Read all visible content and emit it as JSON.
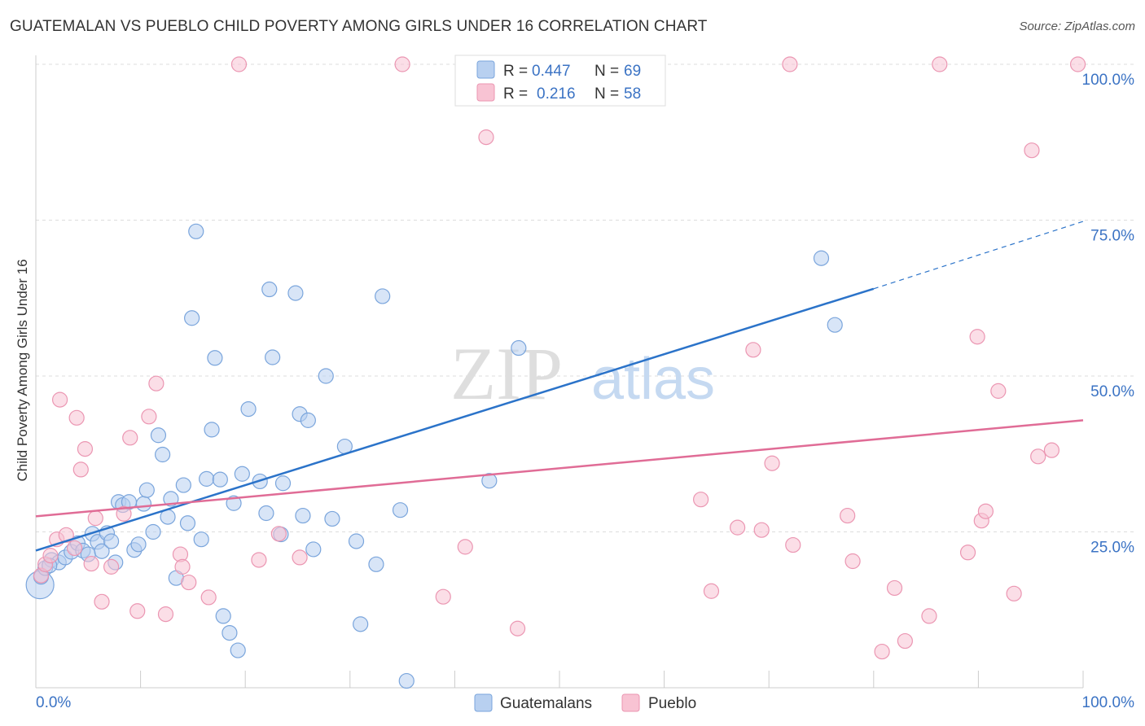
{
  "header": {
    "title": "GUATEMALAN VS PUEBLO CHILD POVERTY AMONG GIRLS UNDER 16 CORRELATION CHART",
    "source": "Source: ZipAtlas.com"
  },
  "watermark": {
    "zip": "ZIP",
    "atlas": "atlas"
  },
  "legend": {
    "rows": [
      {
        "r_label": "R =",
        "r_value": "0.447",
        "n_label": "N =",
        "n_value": "69"
      },
      {
        "r_label": "R =",
        "r_value": "0.216",
        "n_label": "N =",
        "n_value": "58"
      }
    ]
  },
  "bottom_legend": [
    "Guatemalans",
    "Pueblo"
  ],
  "colors": {
    "blue_fill": "#b8d0f0",
    "blue_stroke": "#7aa5dc",
    "blue_line": "#2b73c9",
    "pink_fill": "#f8c3d3",
    "pink_stroke": "#eb96b2",
    "pink_line": "#e06c96",
    "axis_text": "#3b73c4",
    "grid": "#dddddd"
  },
  "chart_data": {
    "type": "scatter",
    "xlabel": "",
    "ylabel": "Child Poverty Among Girls Under 16",
    "xlim": [
      0,
      100
    ],
    "ylim": [
      0,
      100
    ],
    "x_tick_labels": [
      "0.0%",
      "100.0%"
    ],
    "y_tick_labels": [
      "25.0%",
      "50.0%",
      "75.0%",
      "100.0%"
    ],
    "y_ticks": [
      25,
      50,
      75,
      100
    ],
    "grid": true,
    "series": [
      {
        "name": "Guatemalans",
        "r": 0.447,
        "n": 69,
        "trend": {
          "x0": 0,
          "y0": 22.0,
          "x1": 80,
          "y1": 64.0,
          "dash_to_x": 100,
          "dash_to_y": 74.8
        },
        "points": [
          [
            0.4,
            16.5
          ],
          [
            0.5,
            17.8
          ],
          [
            0.9,
            19.2
          ],
          [
            1.5,
            20.5
          ],
          [
            2.2,
            20.1
          ],
          [
            2.8,
            20.9
          ],
          [
            3.4,
            21.8
          ],
          [
            4.0,
            23.2
          ],
          [
            4.5,
            22.0
          ],
          [
            5.0,
            21.4
          ],
          [
            5.4,
            24.7
          ],
          [
            5.9,
            23.4
          ],
          [
            6.3,
            21.9
          ],
          [
            6.8,
            24.8
          ],
          [
            7.2,
            23.5
          ],
          [
            7.6,
            20.1
          ],
          [
            7.9,
            29.8
          ],
          [
            8.3,
            29.3
          ],
          [
            8.9,
            29.8
          ],
          [
            9.4,
            22.1
          ],
          [
            9.8,
            23.0
          ],
          [
            10.3,
            29.5
          ],
          [
            10.6,
            31.7
          ],
          [
            11.2,
            25.0
          ],
          [
            11.7,
            40.5
          ],
          [
            12.1,
            37.4
          ],
          [
            12.6,
            27.4
          ],
          [
            12.9,
            30.3
          ],
          [
            13.4,
            17.6
          ],
          [
            14.1,
            32.5
          ],
          [
            14.5,
            26.4
          ],
          [
            14.9,
            59.3
          ],
          [
            15.3,
            73.2
          ],
          [
            15.8,
            23.8
          ],
          [
            16.3,
            33.5
          ],
          [
            16.8,
            41.4
          ],
          [
            17.1,
            52.9
          ],
          [
            17.6,
            33.4
          ],
          [
            17.9,
            11.5
          ],
          [
            18.5,
            8.8
          ],
          [
            18.9,
            29.6
          ],
          [
            19.3,
            6.0
          ],
          [
            19.7,
            34.3
          ],
          [
            20.3,
            44.7
          ],
          [
            21.4,
            33.1
          ],
          [
            22.0,
            28.0
          ],
          [
            22.3,
            63.9
          ],
          [
            22.6,
            53.0
          ],
          [
            23.4,
            24.6
          ],
          [
            23.6,
            32.8
          ],
          [
            24.8,
            63.3
          ],
          [
            25.2,
            43.9
          ],
          [
            25.5,
            27.6
          ],
          [
            26.0,
            42.9
          ],
          [
            26.5,
            22.2
          ],
          [
            27.7,
            50.0
          ],
          [
            28.3,
            27.1
          ],
          [
            29.5,
            38.7
          ],
          [
            30.6,
            23.5
          ],
          [
            31.0,
            10.2
          ],
          [
            32.5,
            19.8
          ],
          [
            33.1,
            62.8
          ],
          [
            34.8,
            28.5
          ],
          [
            35.4,
            1.1
          ],
          [
            43.3,
            33.2
          ],
          [
            46.1,
            54.5
          ],
          [
            75.0,
            68.9
          ],
          [
            76.3,
            58.2
          ],
          [
            1.3,
            19.6
          ]
        ]
      },
      {
        "name": "Pueblo",
        "r": 0.216,
        "n": 58,
        "trend": {
          "x0": 0,
          "y0": 27.5,
          "x1": 100,
          "y1": 42.9
        },
        "points": [
          [
            0.5,
            18.0
          ],
          [
            0.9,
            19.8
          ],
          [
            1.4,
            21.2
          ],
          [
            2.0,
            23.8
          ],
          [
            2.3,
            46.2
          ],
          [
            2.9,
            24.5
          ],
          [
            3.7,
            22.4
          ],
          [
            3.9,
            43.3
          ],
          [
            4.3,
            35.0
          ],
          [
            4.7,
            38.3
          ],
          [
            5.3,
            19.9
          ],
          [
            5.7,
            27.2
          ],
          [
            6.3,
            13.8
          ],
          [
            7.2,
            19.4
          ],
          [
            8.4,
            27.9
          ],
          [
            9.0,
            40.1
          ],
          [
            9.7,
            12.3
          ],
          [
            10.8,
            43.5
          ],
          [
            11.5,
            48.8
          ],
          [
            12.4,
            11.8
          ],
          [
            13.8,
            21.4
          ],
          [
            14.0,
            19.4
          ],
          [
            14.6,
            16.9
          ],
          [
            16.5,
            14.5
          ],
          [
            19.4,
            100.0
          ],
          [
            21.3,
            20.5
          ],
          [
            23.2,
            24.7
          ],
          [
            25.2,
            20.9
          ],
          [
            35.0,
            100.0
          ],
          [
            38.9,
            14.6
          ],
          [
            41.0,
            22.6
          ],
          [
            43.0,
            88.3
          ],
          [
            46.0,
            9.5
          ],
          [
            63.5,
            30.2
          ],
          [
            64.5,
            15.5
          ],
          [
            67.0,
            25.7
          ],
          [
            68.5,
            54.2
          ],
          [
            69.3,
            25.3
          ],
          [
            70.3,
            36.0
          ],
          [
            72.0,
            100.0
          ],
          [
            72.3,
            22.9
          ],
          [
            77.5,
            27.6
          ],
          [
            78.0,
            20.3
          ],
          [
            80.8,
            5.8
          ],
          [
            82.0,
            16.0
          ],
          [
            83.0,
            7.5
          ],
          [
            85.3,
            11.5
          ],
          [
            86.3,
            100.0
          ],
          [
            89.0,
            21.7
          ],
          [
            89.9,
            56.3
          ],
          [
            90.3,
            26.8
          ],
          [
            90.7,
            28.3
          ],
          [
            91.9,
            47.6
          ],
          [
            93.4,
            15.1
          ],
          [
            95.1,
            86.2
          ],
          [
            95.7,
            37.1
          ],
          [
            97.0,
            38.1
          ],
          [
            99.5,
            100.0
          ]
        ]
      }
    ]
  }
}
